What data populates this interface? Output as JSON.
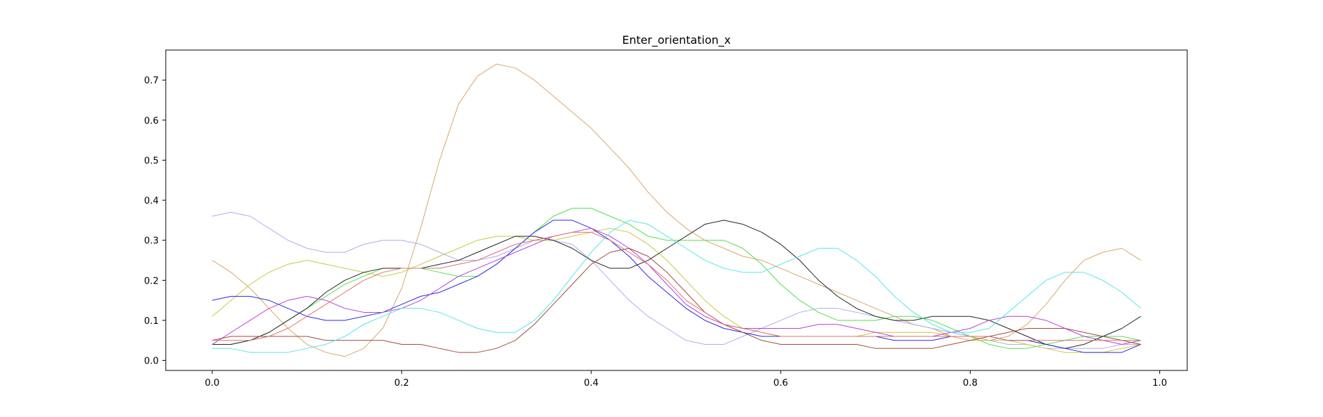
{
  "chart_data": {
    "type": "line",
    "title": "Enter_orientation_x",
    "xlabel": "",
    "ylabel": "",
    "xlim": [
      -0.049,
      1.029
    ],
    "ylim": [
      -0.025,
      0.775
    ],
    "xticks": [
      0.0,
      0.2,
      0.4,
      0.6,
      0.8,
      1.0
    ],
    "xtick_labels": [
      "0.0",
      "0.2",
      "0.4",
      "0.6",
      "0.8",
      "1.0"
    ],
    "yticks": [
      0.0,
      0.1,
      0.2,
      0.3,
      0.4,
      0.5,
      0.6,
      0.7
    ],
    "ytick_labels": [
      "0.0",
      "0.1",
      "0.2",
      "0.3",
      "0.4",
      "0.5",
      "0.6",
      "0.7"
    ],
    "grid": false,
    "legend": "none",
    "x": [
      0.0,
      0.02,
      0.04,
      0.06,
      0.08,
      0.1,
      0.12,
      0.14,
      0.16,
      0.18,
      0.2,
      0.22,
      0.24,
      0.26,
      0.28,
      0.3,
      0.32,
      0.34,
      0.36,
      0.38,
      0.4,
      0.42,
      0.44,
      0.46,
      0.48,
      0.5,
      0.52,
      0.54,
      0.56,
      0.58,
      0.6,
      0.62,
      0.64,
      0.66,
      0.68,
      0.7,
      0.72,
      0.74,
      0.76,
      0.78,
      0.8,
      0.82,
      0.84,
      0.86,
      0.88,
      0.9,
      0.92,
      0.94,
      0.96,
      0.98
    ],
    "series": [
      {
        "color": "#d8a66c",
        "values": [
          0.25,
          0.22,
          0.18,
          0.13,
          0.08,
          0.04,
          0.02,
          0.01,
          0.03,
          0.08,
          0.18,
          0.33,
          0.5,
          0.64,
          0.71,
          0.74,
          0.73,
          0.7,
          0.66,
          0.62,
          0.58,
          0.53,
          0.48,
          0.42,
          0.37,
          0.33,
          0.3,
          0.28,
          0.26,
          0.25,
          0.23,
          0.21,
          0.19,
          0.17,
          0.15,
          0.13,
          0.11,
          0.09,
          0.08,
          0.06,
          0.05,
          0.05,
          0.06,
          0.09,
          0.14,
          0.2,
          0.25,
          0.27,
          0.28,
          0.25
        ]
      },
      {
        "color": "#b3aaec",
        "values": [
          0.36,
          0.37,
          0.36,
          0.33,
          0.3,
          0.28,
          0.27,
          0.27,
          0.29,
          0.3,
          0.3,
          0.29,
          0.27,
          0.25,
          0.25,
          0.26,
          0.28,
          0.3,
          0.3,
          0.29,
          0.25,
          0.2,
          0.15,
          0.11,
          0.08,
          0.05,
          0.04,
          0.04,
          0.06,
          0.08,
          0.1,
          0.12,
          0.13,
          0.13,
          0.12,
          0.11,
          0.1,
          0.09,
          0.08,
          0.07,
          0.06,
          0.05,
          0.04,
          0.04,
          0.03,
          0.03,
          0.03,
          0.03,
          0.04,
          0.04
        ]
      },
      {
        "color": "#50e050",
        "values": [
          0.04,
          0.04,
          0.05,
          0.07,
          0.1,
          0.13,
          0.16,
          0.19,
          0.21,
          0.23,
          0.23,
          0.23,
          0.22,
          0.21,
          0.21,
          0.24,
          0.28,
          0.32,
          0.36,
          0.38,
          0.38,
          0.36,
          0.34,
          0.31,
          0.3,
          0.3,
          0.3,
          0.3,
          0.28,
          0.24,
          0.19,
          0.15,
          0.12,
          0.1,
          0.1,
          0.1,
          0.11,
          0.11,
          0.1,
          0.08,
          0.06,
          0.04,
          0.03,
          0.03,
          0.04,
          0.05,
          0.06,
          0.06,
          0.06,
          0.05
        ]
      },
      {
        "color": "#c8c83c",
        "values": [
          0.11,
          0.15,
          0.19,
          0.22,
          0.24,
          0.25,
          0.24,
          0.23,
          0.22,
          0.21,
          0.22,
          0.24,
          0.26,
          0.28,
          0.3,
          0.31,
          0.31,
          0.3,
          0.3,
          0.31,
          0.32,
          0.33,
          0.32,
          0.29,
          0.25,
          0.2,
          0.15,
          0.11,
          0.08,
          0.07,
          0.06,
          0.06,
          0.06,
          0.06,
          0.06,
          0.07,
          0.07,
          0.07,
          0.07,
          0.06,
          0.06,
          0.05,
          0.05,
          0.04,
          0.03,
          0.02,
          0.02,
          0.02,
          0.03,
          0.04
        ]
      },
      {
        "color": "#222222",
        "values": [
          0.04,
          0.04,
          0.05,
          0.07,
          0.1,
          0.13,
          0.17,
          0.2,
          0.22,
          0.23,
          0.23,
          0.23,
          0.24,
          0.25,
          0.27,
          0.29,
          0.31,
          0.31,
          0.3,
          0.28,
          0.25,
          0.23,
          0.23,
          0.25,
          0.28,
          0.31,
          0.34,
          0.35,
          0.34,
          0.32,
          0.29,
          0.25,
          0.2,
          0.16,
          0.13,
          0.11,
          0.1,
          0.1,
          0.11,
          0.11,
          0.11,
          0.1,
          0.08,
          0.06,
          0.04,
          0.03,
          0.04,
          0.06,
          0.08,
          0.11
        ]
      },
      {
        "color": "#2828e0",
        "values": [
          0.15,
          0.16,
          0.16,
          0.15,
          0.13,
          0.11,
          0.1,
          0.1,
          0.11,
          0.12,
          0.14,
          0.16,
          0.17,
          0.19,
          0.21,
          0.24,
          0.28,
          0.32,
          0.35,
          0.35,
          0.33,
          0.3,
          0.26,
          0.21,
          0.17,
          0.13,
          0.1,
          0.08,
          0.07,
          0.06,
          0.06,
          0.06,
          0.06,
          0.06,
          0.06,
          0.06,
          0.05,
          0.05,
          0.05,
          0.06,
          0.06,
          0.06,
          0.05,
          0.05,
          0.04,
          0.03,
          0.02,
          0.02,
          0.02,
          0.04
        ]
      },
      {
        "color": "#b63ee0",
        "values": [
          0.04,
          0.07,
          0.1,
          0.13,
          0.15,
          0.16,
          0.15,
          0.13,
          0.12,
          0.12,
          0.13,
          0.15,
          0.18,
          0.21,
          0.23,
          0.25,
          0.27,
          0.29,
          0.31,
          0.32,
          0.33,
          0.31,
          0.28,
          0.24,
          0.19,
          0.14,
          0.11,
          0.09,
          0.08,
          0.08,
          0.08,
          0.08,
          0.09,
          0.09,
          0.08,
          0.07,
          0.06,
          0.06,
          0.06,
          0.07,
          0.08,
          0.1,
          0.11,
          0.11,
          0.1,
          0.08,
          0.06,
          0.05,
          0.04,
          0.05
        ]
      },
      {
        "color": "#a04a3a",
        "values": [
          0.05,
          0.06,
          0.06,
          0.06,
          0.06,
          0.06,
          0.05,
          0.05,
          0.05,
          0.05,
          0.04,
          0.04,
          0.03,
          0.02,
          0.02,
          0.03,
          0.05,
          0.09,
          0.14,
          0.19,
          0.24,
          0.27,
          0.28,
          0.26,
          0.22,
          0.17,
          0.12,
          0.09,
          0.07,
          0.05,
          0.04,
          0.04,
          0.04,
          0.04,
          0.04,
          0.03,
          0.03,
          0.03,
          0.03,
          0.04,
          0.05,
          0.06,
          0.07,
          0.08,
          0.08,
          0.08,
          0.07,
          0.06,
          0.05,
          0.04
        ]
      },
      {
        "color": "#50e8e8",
        "values": [
          0.03,
          0.03,
          0.02,
          0.02,
          0.02,
          0.03,
          0.04,
          0.06,
          0.09,
          0.11,
          0.13,
          0.13,
          0.12,
          0.1,
          0.08,
          0.07,
          0.07,
          0.1,
          0.15,
          0.21,
          0.27,
          0.32,
          0.35,
          0.34,
          0.31,
          0.28,
          0.25,
          0.23,
          0.22,
          0.22,
          0.24,
          0.26,
          0.28,
          0.28,
          0.25,
          0.21,
          0.16,
          0.12,
          0.09,
          0.07,
          0.07,
          0.08,
          0.12,
          0.16,
          0.2,
          0.22,
          0.22,
          0.2,
          0.17,
          0.13
        ]
      },
      {
        "color": "#e07070",
        "values": [
          0.05,
          0.05,
          0.05,
          0.06,
          0.08,
          0.11,
          0.14,
          0.17,
          0.2,
          0.22,
          0.23,
          0.23,
          0.23,
          0.24,
          0.25,
          0.27,
          0.29,
          0.3,
          0.31,
          0.32,
          0.32,
          0.3,
          0.27,
          0.24,
          0.2,
          0.15,
          0.12,
          0.09,
          0.08,
          0.07,
          0.06,
          0.06,
          0.06,
          0.06,
          0.06,
          0.06,
          0.06,
          0.06,
          0.06,
          0.06,
          0.06,
          0.06,
          0.05,
          0.05,
          0.05,
          0.05,
          0.05,
          0.05,
          0.05,
          0.05
        ]
      }
    ]
  }
}
